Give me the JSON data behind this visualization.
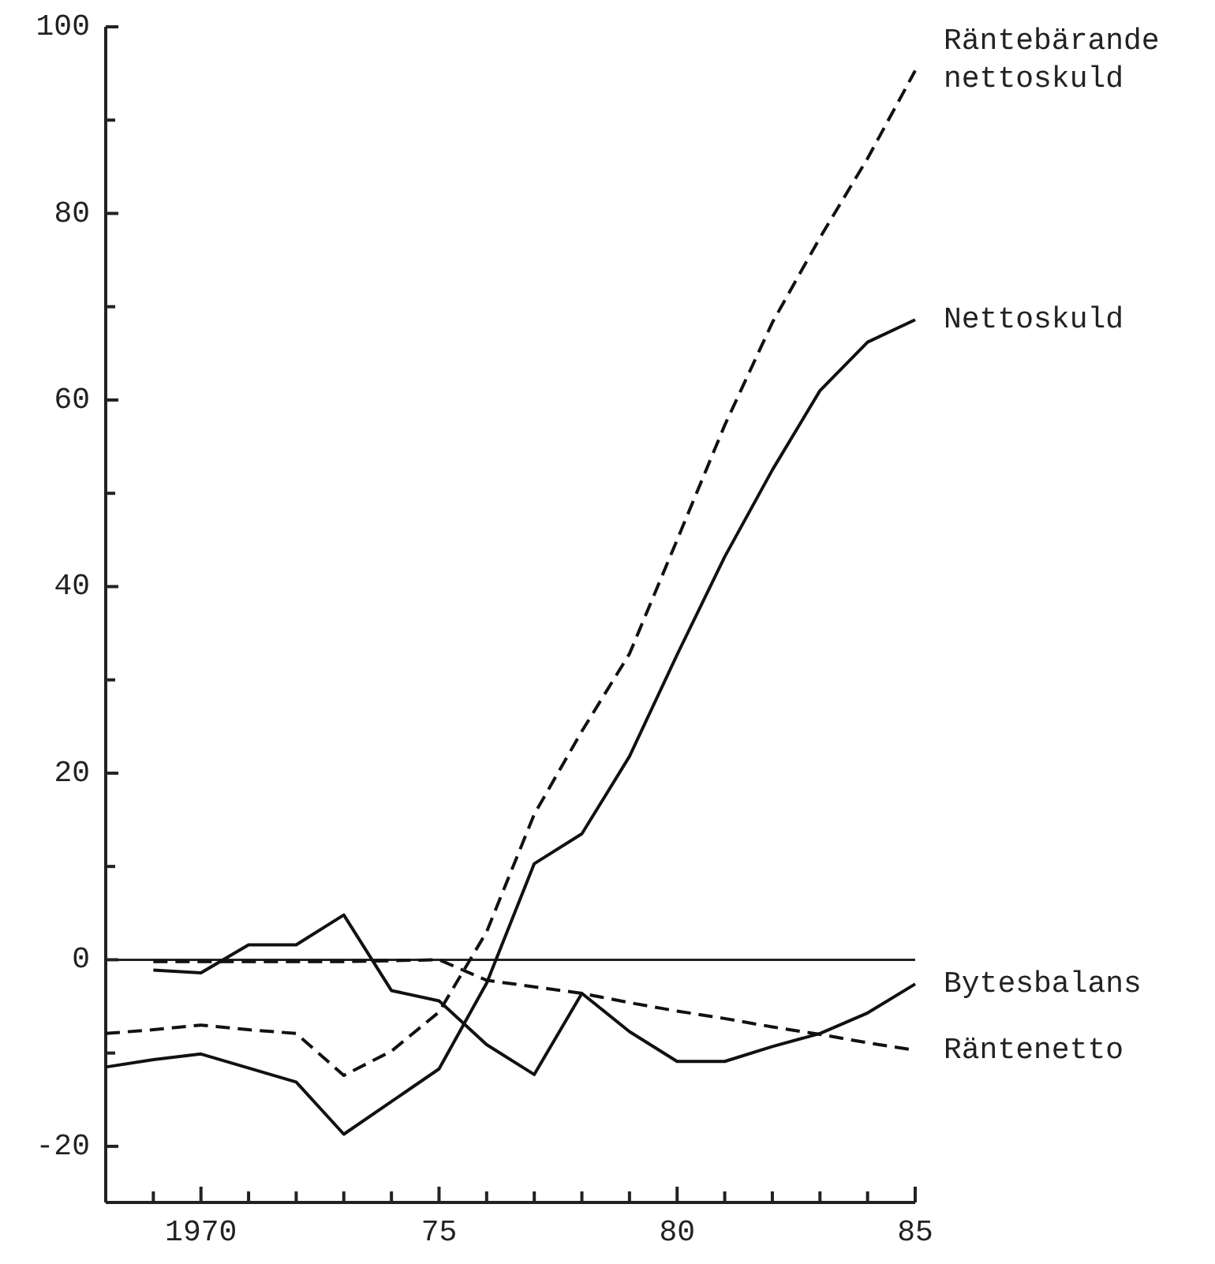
{
  "chart_data": {
    "type": "line",
    "x": [
      1968,
      1969,
      1970,
      1971,
      1972,
      1973,
      1974,
      1975,
      1976,
      1977,
      1978,
      1979,
      1980,
      1981,
      1982,
      1983,
      1984,
      1985
    ],
    "xlim": [
      1968,
      1985
    ],
    "ylim": [
      -25,
      100
    ],
    "xticks": [
      {
        "value": 1968,
        "label": null
      },
      {
        "value": 1969,
        "label": null
      },
      {
        "value": 1970,
        "label": "1970"
      },
      {
        "value": 1971,
        "label": null
      },
      {
        "value": 1972,
        "label": null
      },
      {
        "value": 1973,
        "label": null
      },
      {
        "value": 1974,
        "label": null
      },
      {
        "value": 1975,
        "label": "75"
      },
      {
        "value": 1976,
        "label": null
      },
      {
        "value": 1977,
        "label": null
      },
      {
        "value": 1978,
        "label": null
      },
      {
        "value": 1979,
        "label": null
      },
      {
        "value": 1980,
        "label": "80"
      },
      {
        "value": 1981,
        "label": null
      },
      {
        "value": 1982,
        "label": null
      },
      {
        "value": 1983,
        "label": null
      },
      {
        "value": 1984,
        "label": null
      },
      {
        "value": 1985,
        "label": "85"
      }
    ],
    "yticks": [
      -20,
      {
        "value": -10,
        "label": null
      },
      0,
      {
        "value": 10,
        "label": null
      },
      20,
      {
        "value": 30,
        "label": null
      },
      40,
      {
        "value": 50,
        "label": null
      },
      60,
      {
        "value": 70,
        "label": null
      },
      80,
      {
        "value": 90,
        "label": null
      },
      100
    ],
    "grid": false,
    "marker": "none",
    "ref_lines": [
      {
        "axis": "y",
        "value": 0,
        "label": null
      }
    ],
    "series": [
      {
        "name": "Räntebärande nettoskuld",
        "color": "#111111",
        "line_style": "dashed",
        "values": [
          -7.9,
          -7.5,
          -7.0,
          -7.5,
          -7.9,
          -12.4,
          -9.8,
          -5.6,
          3.0,
          15.6,
          24.5,
          32.8,
          45.0,
          57.3,
          68.3,
          77.4,
          85.9,
          95.3
        ]
      },
      {
        "name": "Nettoskuld",
        "color": "#111111",
        "line_style": "solid",
        "values": [
          -11.5,
          -10.7,
          -10.1,
          -11.6,
          -13.1,
          -18.7,
          -15.2,
          -11.7,
          -2.5,
          10.3,
          13.5,
          21.8,
          32.7,
          43.2,
          52.5,
          61.0,
          66.2,
          68.6
        ]
      },
      {
        "name": "Bytesbalans",
        "color": "#111111",
        "line_style": "solid",
        "values": [
          null,
          -1.1,
          -1.4,
          1.6,
          1.6,
          4.8,
          -3.3,
          -4.4,
          -9.1,
          -12.3,
          -3.6,
          -7.7,
          -10.9,
          -10.9,
          -9.3,
          -7.9,
          -5.7,
          -2.6
        ]
      },
      {
        "name": "Räntenetto",
        "color": "#111111",
        "line_style": "dashed",
        "values": [
          null,
          -0.2,
          -0.2,
          -0.2,
          -0.2,
          -0.2,
          -0.1,
          0,
          -2.2,
          -2.9,
          -3.6,
          -4.6,
          -5.5,
          -6.3,
          -7.2,
          -8.0,
          -8.9,
          -9.7
        ]
      }
    ]
  }
}
